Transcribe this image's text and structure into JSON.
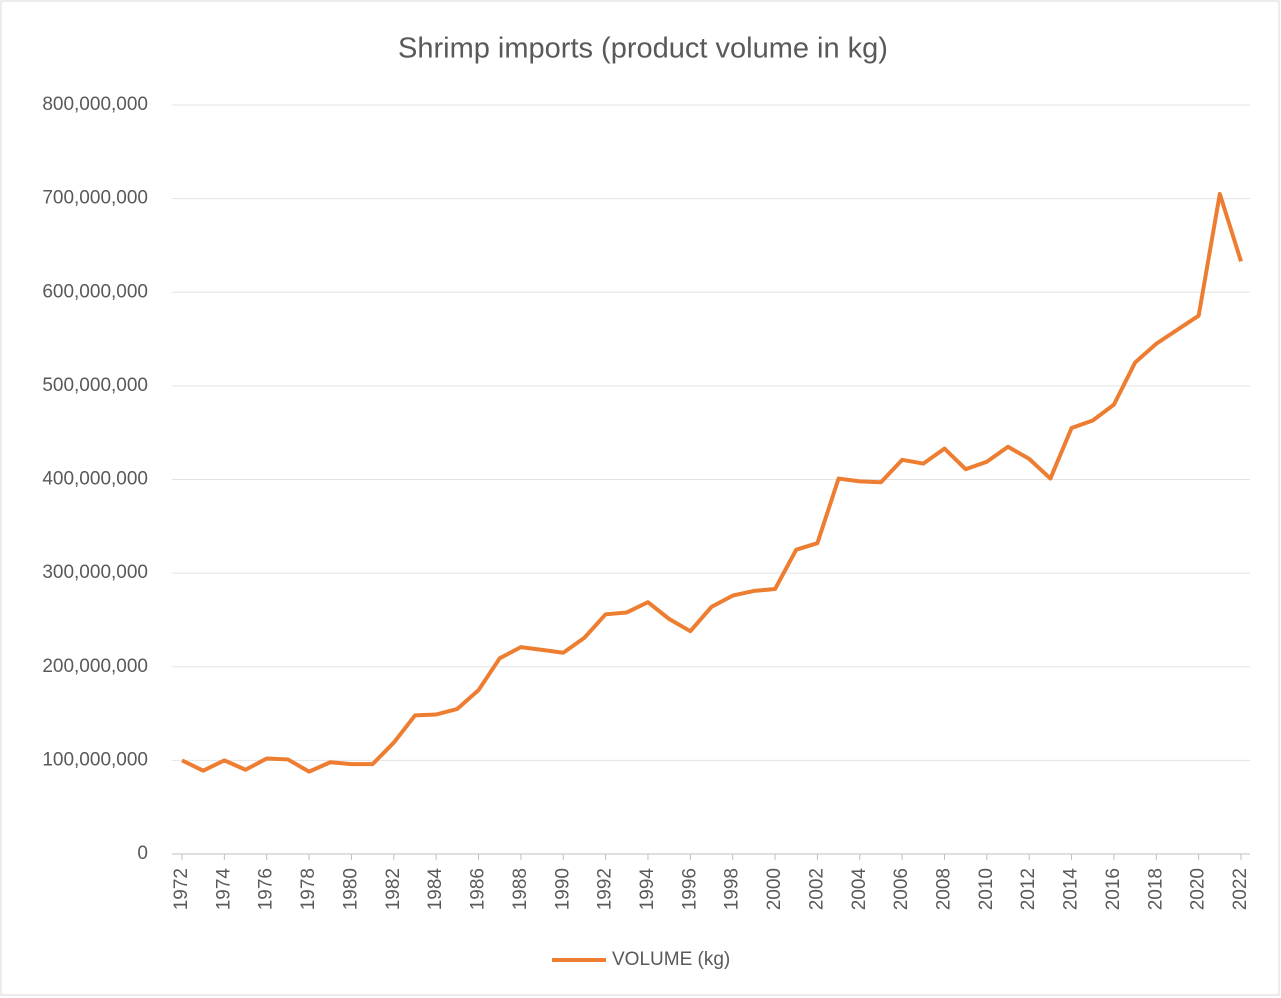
{
  "chart_data": {
    "type": "line",
    "title": "Shrimp imports (product volume in kg)",
    "x": [
      1972,
      1973,
      1974,
      1975,
      1976,
      1977,
      1978,
      1979,
      1980,
      1981,
      1982,
      1983,
      1984,
      1985,
      1986,
      1987,
      1988,
      1989,
      1990,
      1991,
      1992,
      1993,
      1994,
      1995,
      1996,
      1997,
      1998,
      1999,
      2000,
      2001,
      2002,
      2003,
      2004,
      2005,
      2006,
      2007,
      2008,
      2009,
      2010,
      2011,
      2012,
      2013,
      2014,
      2015,
      2016,
      2017,
      2018,
      2019,
      2020,
      2021,
      2022
    ],
    "series": [
      {
        "name": "VOLUME (kg)",
        "color": "#ed7d31",
        "values": [
          100000000,
          89000000,
          100000000,
          90000000,
          102000000,
          101000000,
          88000000,
          98000000,
          96000000,
          96000000,
          119000000,
          148000000,
          149000000,
          155000000,
          175000000,
          209000000,
          221000000,
          218000000,
          215000000,
          231000000,
          256000000,
          258000000,
          269000000,
          251000000,
          238000000,
          264000000,
          276000000,
          281000000,
          283000000,
          325000000,
          332000000,
          401000000,
          398000000,
          397000000,
          421000000,
          417000000,
          433000000,
          411000000,
          419000000,
          435000000,
          422000000,
          401000000,
          455000000,
          463000000,
          480000000,
          525000000,
          545000000,
          560000000,
          575000000,
          705000000,
          633000000
        ]
      }
    ],
    "xlim": [
      1972,
      2022
    ],
    "xticks": [
      1972,
      1974,
      1976,
      1978,
      1980,
      1982,
      1984,
      1986,
      1988,
      1990,
      1992,
      1994,
      1996,
      1998,
      2000,
      2002,
      2004,
      2006,
      2008,
      2010,
      2012,
      2014,
      2016,
      2018,
      2020,
      2022
    ],
    "ylim": [
      0,
      800000000
    ],
    "yticks": [
      0,
      {
        "value": 100000000,
        "label": "100,000,000"
      },
      {
        "value": 200000000,
        "label": "200,000,000"
      },
      {
        "value": 300000000,
        "label": "300,000,000"
      },
      {
        "value": 400000000,
        "label": "400,000,000"
      },
      {
        "value": 500000000,
        "label": "500,000,000"
      },
      {
        "value": 600000000,
        "label": "600,000,000"
      },
      {
        "value": 700000000,
        "label": "700,000,000"
      },
      {
        "value": 800000000,
        "label": "800,000,000"
      }
    ],
    "grid": true,
    "legend": "bottom"
  }
}
